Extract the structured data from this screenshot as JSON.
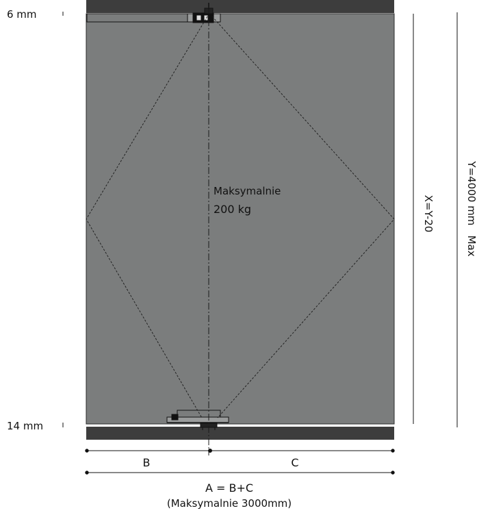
{
  "labels": {
    "top_gap": "6 mm",
    "bottom_gap": "14 mm",
    "load_line1": "Maksymalnie",
    "load_line2": "200 kg",
    "x_dimension": "X=Y-20",
    "y_dimension": "Y=4000 mm   Max",
    "b_label": "B",
    "c_label": "C",
    "a_formula": "A = B+C",
    "a_max": "(Maksymalnie 3000mm)"
  },
  "colors": {
    "door_panel": "#7b7d7d",
    "floor_track": "#3d3d3d",
    "lines": "#1a1a1a"
  }
}
